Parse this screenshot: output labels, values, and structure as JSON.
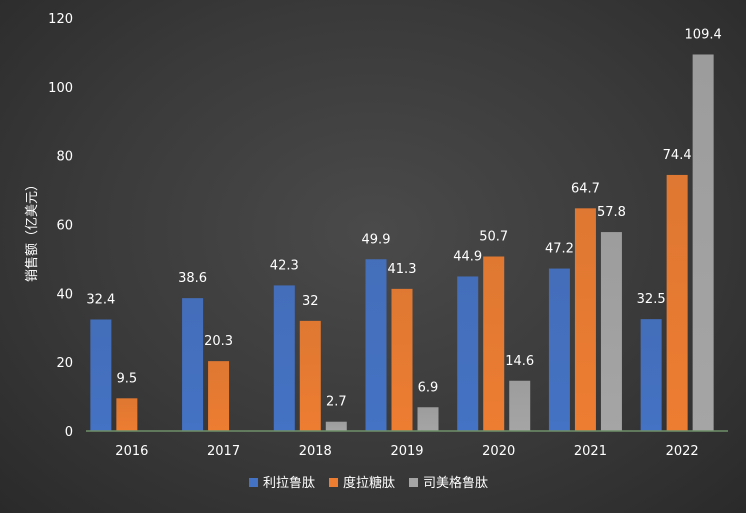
{
  "chart_data": {
    "type": "bar",
    "title": "",
    "xlabel": "",
    "ylabel": "销售额（亿美元）",
    "ylim": [
      0,
      120
    ],
    "yticks": [
      0,
      20,
      40,
      60,
      80,
      100,
      120
    ],
    "grid": false,
    "legend_position": "bottom",
    "categories": [
      "2016",
      "2017",
      "2018",
      "2019",
      "2020",
      "2021",
      "2022"
    ],
    "series": [
      {
        "name": "利拉鲁肽",
        "color": "#4472c4",
        "values": [
          32.4,
          38.6,
          42.3,
          49.9,
          44.9,
          47.2,
          32.5
        ],
        "labels": [
          "32.4",
          "38.6",
          "42.3",
          "49.9",
          "44.9",
          "47.2",
          "32.5"
        ]
      },
      {
        "name": "度拉糖肽",
        "color": "#ed7d31",
        "values": [
          9.5,
          20.3,
          32,
          41.3,
          50.7,
          64.7,
          74.4
        ],
        "labels": [
          "9.5",
          "20.3",
          "32",
          "41.3",
          "50.7",
          "64.7",
          "74.4"
        ]
      },
      {
        "name": "司美格鲁肽",
        "color": "#a5a5a5",
        "values": [
          null,
          null,
          2.7,
          6.9,
          14.6,
          57.8,
          109.4
        ],
        "labels": [
          null,
          null,
          "2.7",
          "6.9",
          "14.6",
          "57.8",
          "109.4"
        ]
      }
    ]
  }
}
